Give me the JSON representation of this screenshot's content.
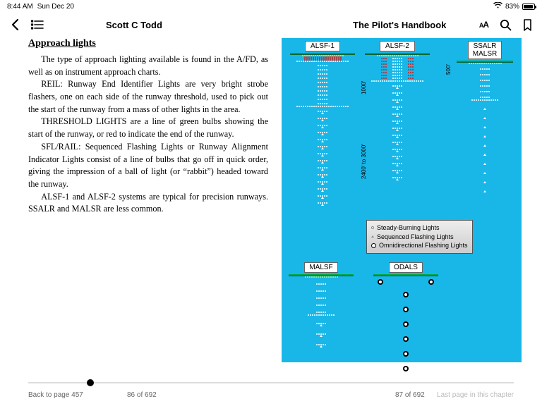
{
  "status": {
    "time": "8:44 AM",
    "date": "Sun Dec 20",
    "battery_pct": "83%"
  },
  "toolbar": {
    "author": "Scott C Todd",
    "title": "The Pilot's Handbook"
  },
  "page": {
    "heading": "Approach lights",
    "p1": "The type of approach lighting available is found in the A/FD, as well as on instrument approach charts.",
    "p2": "REIL: Runway End Identifier Lights are very bright strobe flashers, one on each side of the runway threshold, used to pick out the start of the runway from a mass of other lights in the area.",
    "p3": "THRESHOLD LIGHTS are a line of green bulbs showing the start of the runway, or red to indicate the end of the runway.",
    "p4": "SFL/RAIL: Sequenced Flashing Lights or Runway Alignment Indicator Lights consist of a line of bulbs that go off in quick order, giving the impression of a ball of light (or “rabbit”) headed toward the runway.",
    "p5": "ALSF-1 and ALSF-2 systems are typical for precision runways. SSALR and MALSR are less common."
  },
  "diagram": {
    "background_color": "#18b7e8",
    "systems": {
      "alsf1": "ALSF-1",
      "alsf2": "ALSF-2",
      "ssalr_malsr": "SSALR\nMALSR",
      "malsf": "MALSF",
      "odals": "ODALS"
    },
    "legend": {
      "steady": "Steady-Burning Lights",
      "sequenced": "Sequenced Flashing Lights",
      "omni": "Omnidirectional Flashing Lights"
    },
    "dims": {
      "d1000": "1000'",
      "d2400_3000": "2400' to 3000'",
      "d500": "500'"
    }
  },
  "footer": {
    "back": "Back to page 457",
    "left_pg": "86 of 692",
    "right_pg": "87 of 692",
    "last": "Last page in this chapter"
  },
  "scrubber": {
    "position_pct": 12
  }
}
